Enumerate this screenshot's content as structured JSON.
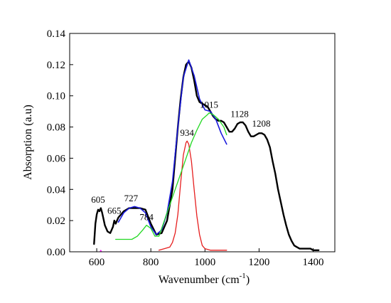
{
  "chart_data": {
    "type": "line",
    "xlabel": "Wavenumber (cm",
    "xlabel_superscript": "-1",
    "xlabel_suffix": ")",
    "ylabel": "Absorption (a.u)",
    "xlim": [
      500,
      1480
    ],
    "ylim": [
      0,
      0.14
    ],
    "xticks": [
      600,
      800,
      1000,
      1200,
      1400
    ],
    "yticks": [
      0.0,
      0.02,
      0.04,
      0.06,
      0.08,
      0.1,
      0.12,
      0.14
    ],
    "ytick_labels": [
      "0.00",
      "0.02",
      "0.04",
      "0.06",
      "0.08",
      "0.10",
      "0.12",
      "0.14"
    ],
    "grid": false,
    "series": [
      {
        "color": "#000000",
        "width": 2.4,
        "x": [
          590,
          595,
          600,
          605,
          610,
          615,
          620,
          625,
          630,
          640,
          650,
          660,
          665,
          670,
          680,
          700,
          720,
          740,
          760,
          780,
          800,
          820,
          840,
          860,
          880,
          900,
          910,
          920,
          930,
          940,
          950,
          960,
          970,
          980,
          990,
          1000,
          1010,
          1020,
          1030,
          1040,
          1050,
          1060,
          1070,
          1080,
          1090,
          1100,
          1110,
          1120,
          1130,
          1140,
          1150,
          1160,
          1170,
          1180,
          1190,
          1200,
          1210,
          1220,
          1230,
          1240,
          1250,
          1260,
          1270,
          1280,
          1290,
          1300,
          1310,
          1320,
          1330,
          1340,
          1350,
          1360,
          1370,
          1380,
          1390,
          1400,
          1410,
          1420
        ],
        "values": [
          0.005,
          0.018,
          0.024,
          0.027,
          0.026,
          0.028,
          0.025,
          0.021,
          0.017,
          0.013,
          0.012,
          0.016,
          0.02,
          0.018,
          0.022,
          0.026,
          0.028,
          0.028,
          0.028,
          0.027,
          0.018,
          0.011,
          0.012,
          0.02,
          0.04,
          0.08,
          0.098,
          0.112,
          0.12,
          0.122,
          0.118,
          0.11,
          0.1,
          0.096,
          0.095,
          0.094,
          0.093,
          0.09,
          0.087,
          0.085,
          0.084,
          0.084,
          0.083,
          0.08,
          0.077,
          0.077,
          0.079,
          0.082,
          0.083,
          0.083,
          0.081,
          0.077,
          0.074,
          0.074,
          0.075,
          0.076,
          0.076,
          0.075,
          0.072,
          0.067,
          0.058,
          0.05,
          0.04,
          0.032,
          0.024,
          0.017,
          0.011,
          0.007,
          0.004,
          0.003,
          0.002,
          0.002,
          0.002,
          0.002,
          0.002,
          0.001,
          0.001,
          0.001
        ]
      },
      {
        "color": "#1a1adc",
        "width": 1.6,
        "x": [
          680,
          700,
          720,
          740,
          760,
          780,
          800,
          820,
          840,
          860,
          880,
          900,
          920,
          940,
          960,
          980,
          1000,
          1020,
          1040,
          1060,
          1080
        ],
        "values": [
          0.019,
          0.025,
          0.028,
          0.029,
          0.028,
          0.025,
          0.016,
          0.011,
          0.014,
          0.025,
          0.045,
          0.08,
          0.112,
          0.123,
          0.113,
          0.098,
          0.091,
          0.09,
          0.085,
          0.076,
          0.069
        ]
      },
      {
        "color": "#e61e1e",
        "width": 1.3,
        "x": [
          830,
          850,
          870,
          880,
          890,
          900,
          910,
          920,
          930,
          934,
          940,
          950,
          960,
          970,
          980,
          990,
          1000,
          1020,
          1040,
          1060,
          1080
        ],
        "values": [
          0.001,
          0.002,
          0.003,
          0.006,
          0.012,
          0.024,
          0.044,
          0.062,
          0.07,
          0.071,
          0.069,
          0.058,
          0.04,
          0.023,
          0.011,
          0.004,
          0.002,
          0.001,
          0.001,
          0.001,
          0.001
        ]
      },
      {
        "color": "#22d822",
        "width": 1.3,
        "x": [
          670,
          700,
          730,
          750,
          770,
          784,
          800,
          815,
          830,
          850,
          870,
          890,
          910,
          930,
          950,
          970,
          990,
          1010,
          1015,
          1030,
          1050,
          1070,
          1080
        ],
        "values": [
          0.008,
          0.008,
          0.008,
          0.01,
          0.014,
          0.017,
          0.015,
          0.01,
          0.01,
          0.02,
          0.03,
          0.04,
          0.05,
          0.06,
          0.07,
          0.078,
          0.085,
          0.088,
          0.089,
          0.088,
          0.085,
          0.08,
          0.075
        ]
      },
      {
        "color": "#ff00ff",
        "width": 1.0,
        "x": [
          612,
          615,
          618
        ],
        "values": [
          0.0,
          0.001,
          0.0
        ]
      }
    ],
    "annotations": [
      {
        "text": "605",
        "x": 605,
        "y": 0.03
      },
      {
        "text": "665",
        "x": 665,
        "y": 0.023
      },
      {
        "text": "727",
        "x": 727,
        "y": 0.031
      },
      {
        "text": "784",
        "x": 784,
        "y": 0.019
      },
      {
        "text": "934",
        "x": 934,
        "y": 0.073
      },
      {
        "text": "1015",
        "x": 1015,
        "y": 0.091
      },
      {
        "text": "1128",
        "x": 1128,
        "y": 0.085
      },
      {
        "text": "1208",
        "x": 1208,
        "y": 0.079
      }
    ]
  }
}
